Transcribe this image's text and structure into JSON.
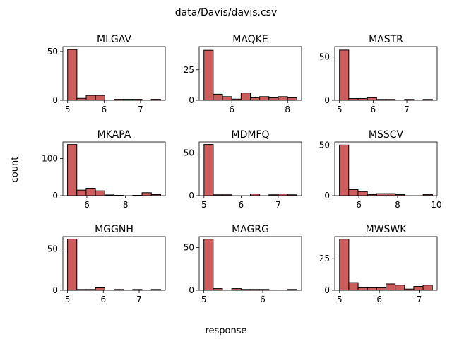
{
  "figure": {
    "suptitle": "data/Davis/davis.csv",
    "xlabel": "response",
    "ylabel": "count"
  },
  "style": {
    "bar_color": "#cd5c5c",
    "edge_color": "#000000"
  },
  "chart_data": [
    {
      "type": "bar",
      "title": "MLGAV",
      "bin_start": 5.0,
      "bin_end": 7.55,
      "counts": [
        52,
        2,
        5,
        5,
        0,
        1,
        1,
        1,
        0,
        1
      ],
      "xticks": [
        5,
        6,
        7
      ],
      "yticks": [
        0,
        50
      ],
      "xlim": [
        4.87,
        7.68
      ],
      "ylim": [
        0,
        55
      ]
    },
    {
      "type": "bar",
      "title": "MAQKE",
      "bin_start": 5.0,
      "bin_end": 8.33,
      "counts": [
        41,
        5,
        3,
        1,
        6,
        2,
        3,
        2,
        3,
        2
      ],
      "xticks": [
        6,
        8
      ],
      "yticks": [
        0,
        25
      ],
      "xlim": [
        4.83,
        8.5
      ],
      "ylim": [
        0,
        44
      ]
    },
    {
      "type": "bar",
      "title": "MASTR",
      "bin_start": 5.0,
      "bin_end": 7.76,
      "counts": [
        58,
        2,
        2,
        3,
        1,
        1,
        0,
        1,
        0,
        1
      ],
      "xticks": [
        5,
        6,
        7
      ],
      "yticks": [
        0,
        50
      ],
      "xlim": [
        4.86,
        7.9
      ],
      "ylim": [
        0,
        62
      ]
    },
    {
      "type": "bar",
      "title": "MKAPA",
      "bin_start": 5.0,
      "bin_end": 9.82,
      "counts": [
        138,
        15,
        20,
        13,
        2,
        1,
        0,
        1,
        8,
        3
      ],
      "xticks": [
        6,
        8
      ],
      "yticks": [
        0,
        100
      ],
      "xlim": [
        4.76,
        10.06
      ],
      "ylim": [
        0,
        145
      ]
    },
    {
      "type": "bar",
      "title": "MDMFQ",
      "bin_start": 5.0,
      "bin_end": 7.5,
      "counts": [
        60,
        1,
        1,
        0,
        0,
        2,
        0,
        1,
        2,
        1
      ],
      "xticks": [
        5,
        6,
        7
      ],
      "yticks": [
        0,
        50
      ],
      "xlim": [
        4.87,
        7.63
      ],
      "ylim": [
        0,
        63
      ]
    },
    {
      "type": "bar",
      "title": "MSSCV",
      "bin_start": 5.0,
      "bin_end": 9.8,
      "counts": [
        50,
        6,
        4,
        1,
        2,
        2,
        1,
        0,
        0,
        1
      ],
      "xticks": [
        6,
        8,
        10
      ],
      "yticks": [
        0,
        50
      ],
      "xlim": [
        4.76,
        10.04
      ],
      "ylim": [
        0,
        53
      ]
    },
    {
      "type": "bar",
      "title": "MGGNH",
      "bin_start": 5.0,
      "bin_end": 7.6,
      "counts": [
        62,
        1,
        1,
        3,
        0,
        1,
        0,
        1,
        0,
        1
      ],
      "xticks": [
        5,
        6,
        7
      ],
      "yticks": [
        0,
        50
      ],
      "xlim": [
        4.87,
        7.73
      ],
      "ylim": [
        0,
        65
      ]
    },
    {
      "type": "bar",
      "title": "MAGRG",
      "bin_start": 5.0,
      "bin_end": 6.58,
      "counts": [
        60,
        2,
        0,
        2,
        1,
        1,
        1,
        0,
        0,
        1
      ],
      "xticks": [
        5,
        6
      ],
      "yticks": [
        0,
        50
      ],
      "xlim": [
        4.92,
        6.66
      ],
      "ylim": [
        0,
        63
      ]
    },
    {
      "type": "bar",
      "title": "MWSWK",
      "bin_start": 5.0,
      "bin_end": 7.33,
      "counts": [
        40,
        6,
        2,
        2,
        2,
        5,
        4,
        1,
        3,
        4
      ],
      "xticks": [
        5,
        6,
        7
      ],
      "yticks": [
        0,
        25
      ],
      "xlim": [
        4.88,
        7.45
      ],
      "ylim": [
        0,
        42
      ]
    }
  ]
}
